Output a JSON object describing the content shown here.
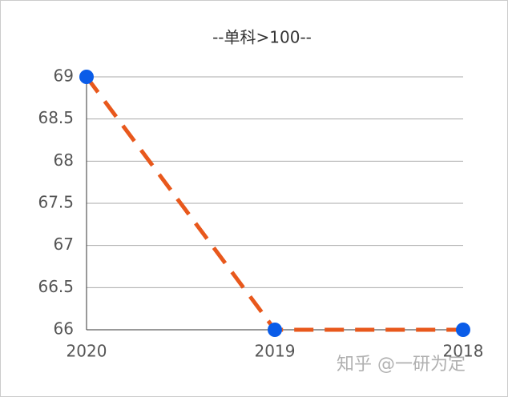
{
  "chart_data": {
    "type": "line",
    "title": "--单科>100--",
    "categories": [
      "2020",
      "2019",
      "2018"
    ],
    "values": [
      69,
      66,
      66
    ],
    "color": "#e8581c",
    "marker_color": "#0a5ce8",
    "dashed": true,
    "ylim": [
      66,
      69
    ],
    "yticks": [
      66,
      66.5,
      67,
      67.5,
      68,
      68.5,
      69
    ],
    "grid": true,
    "watermark": "知乎 @一研为定"
  }
}
